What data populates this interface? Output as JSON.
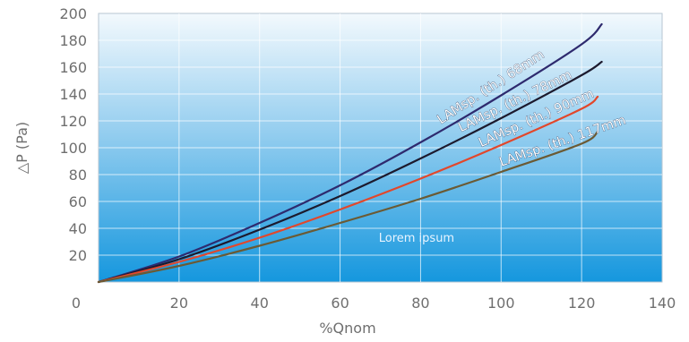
{
  "chart_data": {
    "type": "line",
    "xlabel": "%Qnom",
    "ylabel": "△P (Pa)",
    "xlim": [
      0,
      140
    ],
    "ylim": [
      0,
      200
    ],
    "x_ticks": [
      0,
      20,
      40,
      60,
      80,
      100,
      120,
      140
    ],
    "y_ticks": [
      20,
      40,
      60,
      80,
      100,
      120,
      140,
      160,
      180,
      200
    ],
    "grid": true,
    "annotation": "Lorem ipsum",
    "series": [
      {
        "name": "LAMsp. (th.) 68mm",
        "color": "#2e2a6e",
        "x": [
          0,
          20,
          40,
          60,
          80,
          100,
          120,
          125
        ],
        "y": [
          0,
          19,
          44,
          72,
          104,
          139,
          177,
          192
        ]
      },
      {
        "name": "LAMsp. (th.) 78mm",
        "color": "#1c1a2e",
        "x": [
          0,
          20,
          40,
          60,
          80,
          100,
          120,
          125
        ],
        "y": [
          0,
          17,
          39,
          64,
          92,
          122,
          154,
          164
        ]
      },
      {
        "name": "LAMsp. (th.) 90mm",
        "color": "#e2472b",
        "x": [
          0,
          20,
          40,
          60,
          80,
          100,
          120,
          124
        ],
        "y": [
          0,
          15,
          33,
          54,
          77,
          102,
          129,
          138
        ]
      },
      {
        "name": "LAMsp. (th.) 117mm",
        "color": "#6b5a34",
        "x": [
          0,
          20,
          40,
          60,
          80,
          100,
          120,
          124
        ],
        "y": [
          0,
          12,
          27,
          44,
          62,
          82,
          103,
          112
        ]
      }
    ]
  }
}
